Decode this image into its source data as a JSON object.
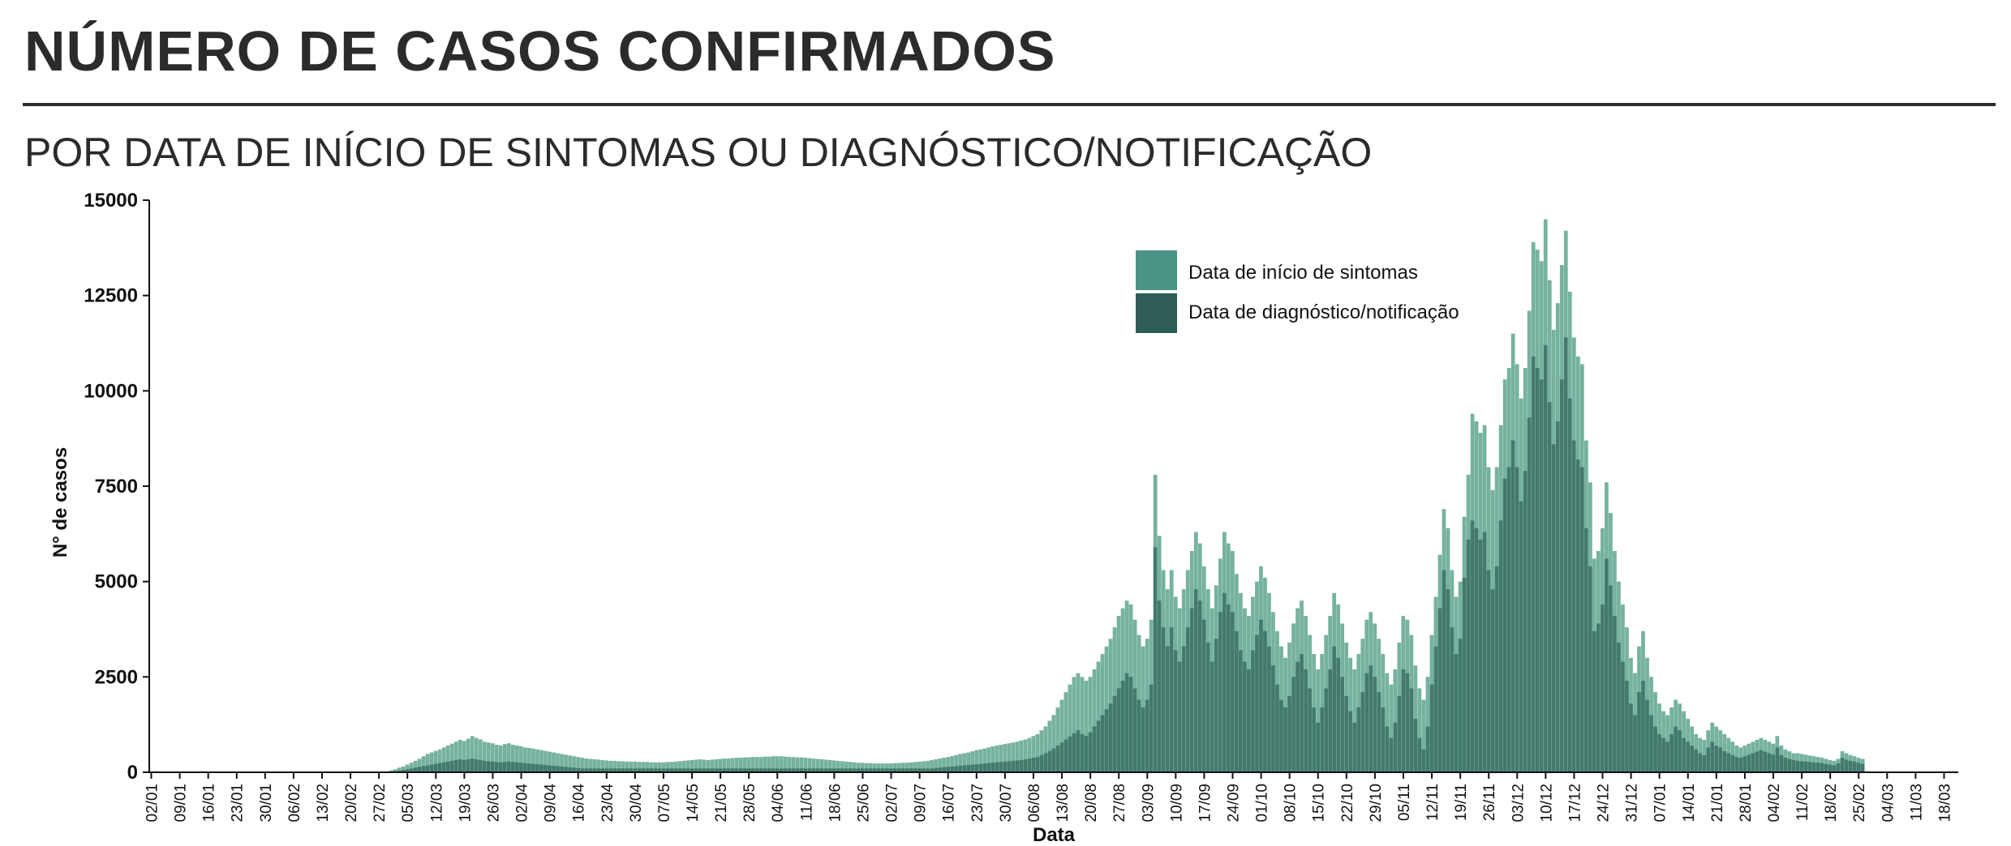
{
  "header": {
    "title": "NÚMERO DE CASOS CONFIRMADOS",
    "subtitle": "POR DATA DE INÍCIO DE SINTOMAS OU DIAGNÓSTICO/NOTIFICAÇÃO"
  },
  "colors": {
    "sintomas": "#6fae9a",
    "diagnostico": "#2e6358",
    "legend_sintomas": "#4a9385",
    "legend_diagnostico": "#2e5e56",
    "axis": "#111111"
  },
  "chart_data": {
    "type": "bar",
    "xlabel": "Data",
    "ylabel": "N° de casos",
    "ylim": [
      0,
      15000
    ],
    "yticks": [
      0,
      2500,
      5000,
      7500,
      10000,
      12500,
      15000
    ],
    "grid": false,
    "legend_position": "top-center",
    "x_range": [
      "2020-01-02",
      "2021-03-21"
    ],
    "xtick_labels": [
      "02/01",
      "09/01",
      "16/01",
      "23/01",
      "30/01",
      "06/02",
      "13/02",
      "20/02",
      "27/02",
      "05/03",
      "12/03",
      "19/03",
      "26/03",
      "02/04",
      "09/04",
      "16/04",
      "23/04",
      "30/04",
      "07/05",
      "14/05",
      "21/05",
      "28/05",
      "04/06",
      "11/06",
      "18/06",
      "25/06",
      "02/07",
      "09/07",
      "16/07",
      "23/07",
      "30/07",
      "06/08",
      "13/08",
      "20/08",
      "27/08",
      "03/09",
      "10/09",
      "17/09",
      "24/09",
      "01/10",
      "08/10",
      "15/10",
      "22/10",
      "29/10",
      "05/11",
      "12/11",
      "19/11",
      "26/11",
      "03/12",
      "10/12",
      "17/12",
      "24/12",
      "31/12",
      "07/01",
      "14/01",
      "21/01",
      "28/01",
      "04/02",
      "11/02",
      "18/02",
      "25/02",
      "04/03",
      "11/03",
      "18/03"
    ],
    "series": [
      {
        "name": "Data de início de sintomas",
        "weekly_profile_note": "",
        "daily_start": "2020-03-01",
        "values": [
          50,
          80,
          120,
          150,
          200,
          250,
          300,
          350,
          420,
          480,
          520,
          560,
          600,
          650,
          700,
          750,
          800,
          850,
          820,
          880,
          950,
          900,
          860,
          800,
          780,
          760,
          720,
          700,
          740,
          760,
          720,
          700,
          680,
          650,
          640,
          620,
          600,
          580,
          560,
          540,
          520,
          500,
          480,
          460,
          440,
          420,
          400,
          380,
          360,
          350,
          340,
          330,
          320,
          310,
          300,
          300,
          290,
          290,
          280,
          280,
          280,
          270,
          270,
          270,
          260,
          260,
          260,
          260,
          270,
          270,
          280,
          290,
          300,
          310,
          320,
          330,
          340,
          330,
          320,
          330,
          340,
          350,
          360,
          360,
          370,
          380,
          380,
          390,
          390,
          400,
          400,
          400,
          410,
          410,
          420,
          420,
          420,
          410,
          400,
          400,
          390,
          390,
          380,
          370,
          360,
          350,
          340,
          330,
          320,
          310,
          300,
          290,
          280,
          270,
          260,
          250,
          250,
          240,
          240,
          230,
          230,
          230,
          230,
          230,
          240,
          240,
          250,
          250,
          260,
          270,
          280,
          290,
          300,
          320,
          340,
          360,
          380,
          400,
          420,
          450,
          480,
          500,
          520,
          550,
          580,
          600,
          620,
          650,
          680,
          700,
          720,
          740,
          760,
          780,
          800,
          830,
          860,
          900,
          950,
          1000,
          1100,
          1200,
          1350,
          1500,
          1700,
          1900,
          2100,
          2300,
          2500,
          2600,
          2500,
          2400,
          2500,
          2700,
          2900,
          3100,
          3300,
          3500,
          3800,
          4100,
          4300,
          4500,
          4400,
          4000,
          3600,
          3300,
          3500,
          4000,
          7800,
          6200,
          5300,
          4800,
          5300,
          4600,
          4300,
          4800,
          5300,
          5800,
          6300,
          6000,
          5400,
          4800,
          4300,
          4900,
          5600,
          6300,
          6000,
          5800,
          5200,
          4700,
          4300,
          4100,
          4600,
          5000,
          5400,
          5100,
          4700,
          4200,
          3700,
          3300,
          3000,
          3400,
          3900,
          4300,
          4500,
          4100,
          3600,
          3100,
          2700,
          3100,
          3600,
          4100,
          4700,
          4400,
          3900,
          3400,
          3000,
          2700,
          3100,
          3500,
          4000,
          4200,
          3900,
          3500,
          3100,
          2600,
          2300,
          2700,
          3400,
          4100,
          4000,
          3600,
          2800,
          2200,
          1900,
          2500,
          3600,
          4600,
          5700,
          6900,
          6400,
          5300,
          4600,
          5000,
          6700,
          7800,
          9400,
          9200,
          8900,
          9100,
          8000,
          7400,
          8000,
          9100,
          10300,
          10600,
          11500,
          10700,
          9800,
          10600,
          12100,
          13900,
          13700,
          13400,
          14500,
          12900,
          11600,
          12300,
          13300,
          14200,
          12600,
          11400,
          10900,
          10700,
          8700,
          7600,
          5600,
          5800,
          6400,
          7600,
          6800,
          5800,
          5000,
          4400,
          3800,
          3000,
          2600,
          3300,
          3700,
          3000,
          2500,
          2100,
          1800,
          1600,
          1500,
          1700,
          1900,
          1800,
          1600,
          1400,
          1200,
          1000,
          900,
          850,
          1100,
          1300,
          1200,
          1100,
          1000,
          900,
          800,
          700,
          650,
          700,
          750,
          800,
          850,
          900,
          850,
          800,
          750,
          950,
          700,
          600,
          550,
          500,
          500,
          480,
          460,
          440,
          420,
          400,
          380,
          350,
          320,
          300,
          350,
          550,
          500,
          450,
          420,
          380,
          350
        ]
      },
      {
        "name": "Data de diagnóstico/notificação",
        "daily_start": "2020-03-01",
        "values": [
          20,
          30,
          40,
          60,
          80,
          100,
          120,
          140,
          160,
          180,
          200,
          220,
          240,
          260,
          280,
          300,
          320,
          340,
          320,
          340,
          360,
          340,
          320,
          300,
          290,
          280,
          270,
          260,
          270,
          280,
          270,
          260,
          250,
          240,
          230,
          220,
          210,
          200,
          190,
          180,
          170,
          160,
          150,
          140,
          130,
          120,
          110,
          100,
          100,
          100,
          100,
          100,
          100,
          100,
          100,
          100,
          100,
          100,
          100,
          100,
          100,
          100,
          100,
          100,
          100,
          100,
          100,
          100,
          100,
          100,
          100,
          100,
          100,
          100,
          100,
          100,
          100,
          100,
          100,
          100,
          100,
          100,
          100,
          100,
          100,
          100,
          100,
          100,
          100,
          100,
          100,
          100,
          100,
          100,
          100,
          100,
          100,
          100,
          100,
          100,
          100,
          100,
          100,
          100,
          100,
          100,
          100,
          100,
          100,
          100,
          100,
          100,
          100,
          100,
          100,
          100,
          100,
          100,
          100,
          100,
          100,
          100,
          100,
          100,
          100,
          100,
          100,
          100,
          100,
          100,
          100,
          100,
          100,
          100,
          110,
          120,
          130,
          140,
          150,
          160,
          170,
          180,
          190,
          200,
          210,
          220,
          230,
          240,
          250,
          260,
          270,
          280,
          290,
          300,
          310,
          320,
          340,
          360,
          380,
          400,
          450,
          500,
          560,
          620,
          700,
          780,
          860,
          940,
          1020,
          1100,
          1000,
          950,
          1050,
          1200,
          1350,
          1500,
          1650,
          1800,
          2000,
          2200,
          2400,
          2600,
          2500,
          2200,
          1900,
          1700,
          1900,
          2300,
          5900,
          4500,
          3800,
          3300,
          3800,
          3200,
          2900,
          3300,
          3800,
          4300,
          4800,
          4500,
          4000,
          3400,
          2900,
          3500,
          4200,
          4700,
          4400,
          4200,
          3700,
          3200,
          2900,
          2700,
          3200,
          3600,
          4000,
          3700,
          3300,
          2800,
          2300,
          1900,
          1700,
          2000,
          2500,
          2900,
          3100,
          2700,
          2200,
          1700,
          1300,
          1700,
          2200,
          2700,
          3300,
          3000,
          2500,
          2000,
          1600,
          1300,
          1700,
          2100,
          2600,
          2800,
          2500,
          2100,
          1700,
          1200,
          900,
          1300,
          2000,
          2700,
          2600,
          2200,
          1400,
          900,
          600,
          1200,
          2300,
          3300,
          4300,
          5300,
          4800,
          3800,
          3100,
          3500,
          5100,
          6100,
          6600,
          6400,
          6100,
          6300,
          5300,
          4800,
          5400,
          6600,
          7700,
          8000,
          8700,
          8000,
          7100,
          7900,
          9300,
          10900,
          10600,
          10300,
          11200,
          9700,
          8600,
          9200,
          10300,
          11400,
          9800,
          8700,
          8200,
          8000,
          6400,
          5400,
          3700,
          3900,
          4400,
          5600,
          4900,
          4100,
          3400,
          2900,
          2400,
          1800,
          1500,
          2100,
          2400,
          1900,
          1500,
          1200,
          1000,
          900,
          800,
          1000,
          1200,
          1100,
          900,
          800,
          700,
          600,
          500,
          450,
          650,
          800,
          700,
          650,
          550,
          500,
          450,
          400,
          380,
          420,
          460,
          500,
          540,
          580,
          540,
          500,
          460,
          650,
          450,
          380,
          350,
          320,
          300,
          290,
          280,
          270,
          260,
          250,
          240,
          220,
          200,
          180,
          230,
          380,
          330,
          300,
          280,
          250,
          220
        ]
      }
    ]
  },
  "legend": {
    "items": [
      {
        "label": "Data de início de sintomas"
      },
      {
        "label": "Data de diagnóstico/notificação"
      }
    ]
  }
}
